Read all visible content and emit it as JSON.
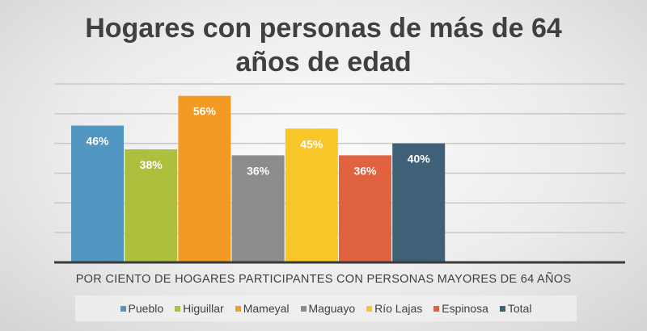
{
  "chart_data": {
    "type": "bar",
    "title": "Hogares con personas de más de 64 años de edad",
    "title_lines": [
      "Hogares con personas de más de 64",
      "años de edad"
    ],
    "xlabel": "POR CIENTO DE HOGARES PARTICIPANTES CON PERSONAS MAYORES DE 64 AÑOS",
    "ylabel": "",
    "ylim": [
      0,
      60
    ],
    "grid": true,
    "gridlines": [
      10,
      20,
      30,
      40,
      50,
      60
    ],
    "legend_position": "bottom",
    "categories": [
      "Pueblo",
      "Higuillar",
      "Mameyal",
      "Maguayo",
      "Río Lajas",
      "Espinosa",
      "Total"
    ],
    "values": [
      46,
      38,
      56,
      36,
      45,
      36,
      40
    ],
    "labels": [
      "46%",
      "38%",
      "56%",
      "36%",
      "45%",
      "36%",
      "40%"
    ],
    "colors": [
      "#5197c2",
      "#aebf3e",
      "#f29a22",
      "#8c8c8c",
      "#f9c629",
      "#e0623f",
      "#3e6178"
    ]
  }
}
